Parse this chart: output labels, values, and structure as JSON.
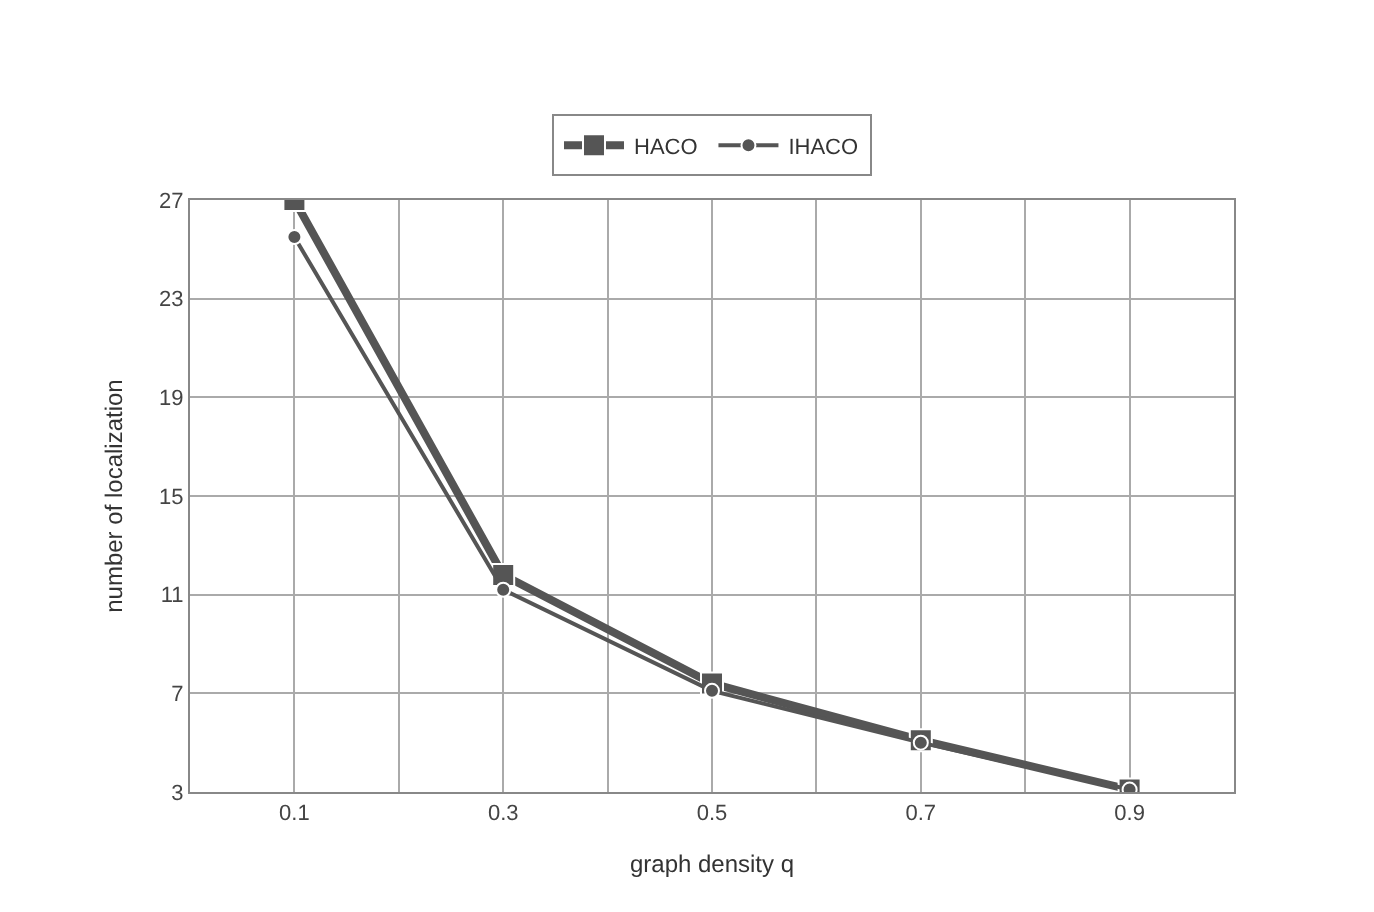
{
  "chart_data": {
    "type": "line",
    "xlabel": "graph density q",
    "ylabel": "number of localization",
    "x": [
      0.1,
      0.3,
      0.5,
      0.7,
      0.9
    ],
    "series": [
      {
        "name": "HACO",
        "color": "#555555",
        "marker": "square",
        "values": [
          27,
          11.8,
          7.4,
          5.1,
          3.1
        ]
      },
      {
        "name": "IHACO",
        "color": "#555555",
        "marker": "circle",
        "values": [
          25.5,
          11.2,
          7.1,
          5.0,
          3.1
        ]
      }
    ],
    "xlim": [
      0,
      1
    ],
    "xticks": [
      {
        "value": 0,
        "label": null
      },
      0.1,
      {
        "value": 0.2,
        "label": null
      },
      0.3,
      {
        "value": 0.4,
        "label": null
      },
      0.5,
      {
        "value": 0.6,
        "label": null
      },
      0.7,
      {
        "value": 0.8,
        "label": null
      },
      0.9,
      {
        "value": 1,
        "label": null
      }
    ],
    "ylim": [
      3,
      27
    ],
    "yticks": [
      3,
      7,
      11,
      15,
      19,
      23,
      27
    ],
    "grid": true,
    "legend": "top",
    "line_style": "solid"
  }
}
